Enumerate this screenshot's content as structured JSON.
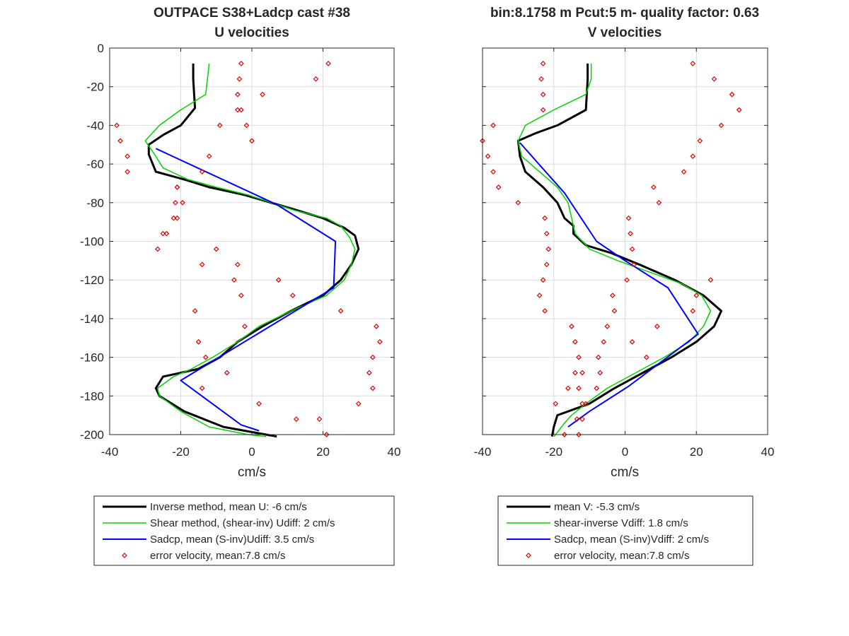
{
  "figure": {
    "left_title_line1": "OUTPACE S38+Ladcp cast #38",
    "right_title_line1": "bin:8.1758 m  Pcut:5 m- quality factor:  0.63"
  },
  "chart_data": [
    {
      "type": "line",
      "title": "U velocities",
      "xlabel": "cm/s",
      "ylabel": "",
      "xlim": [
        -40,
        40
      ],
      "ylim": [
        -200,
        0
      ],
      "xticks": [
        -40,
        -20,
        0,
        20,
        40
      ],
      "yticks": [
        0,
        -20,
        -40,
        -60,
        -80,
        -100,
        -120,
        -140,
        -160,
        -180,
        -200
      ],
      "grid": true,
      "legend_position": "below",
      "series": [
        {
          "name": "Inverse method, mean U:  -6 cm/s",
          "color": "#000000",
          "style": "line",
          "width": 3,
          "x": [
            -16.5,
            -16.5,
            -16,
            -20,
            -25,
            -29,
            -29,
            -27,
            -19,
            -12,
            -2,
            11,
            20,
            26,
            29,
            30,
            28,
            25,
            20,
            11,
            3,
            -4,
            -9,
            -15,
            -20,
            -25,
            -27,
            -26,
            -19,
            -8,
            7
          ],
          "y": [
            -8,
            -16,
            -31,
            -40,
            -45,
            -50,
            -55,
            -64,
            -68,
            -72,
            -76,
            -83,
            -88,
            -93,
            -97,
            -104,
            -112,
            -120,
            -128,
            -136,
            -144,
            -152,
            -160,
            -166,
            -168,
            -170,
            -176,
            -180,
            -188,
            -196,
            -201
          ]
        },
        {
          "name": "Shear method, (shear-inv)  Udiff:  2 cm/s",
          "color": "#00d400",
          "style": "line",
          "width": 1.5,
          "x": [
            -12,
            -12.5,
            -13,
            -20,
            -26,
            -30,
            -27,
            -25,
            -18,
            -10,
            -1,
            12,
            21,
            25,
            27.5,
            29,
            28,
            26,
            21,
            11,
            2,
            -4,
            -11,
            -17,
            -22,
            -26.5,
            -26,
            -20,
            -12,
            -1,
            4
          ],
          "y": [
            -8,
            -16,
            -24,
            -32,
            -40,
            -48,
            -56,
            -62,
            -68,
            -72,
            -76,
            -84,
            -88,
            -92,
            -98,
            -104,
            -112,
            -120,
            -128,
            -136,
            -144,
            -152,
            -160,
            -166,
            -170,
            -176,
            -180,
            -188,
            -196,
            -200,
            -201
          ]
        },
        {
          "name": "Sadcp, mean (S-inv)Udiff: 3.5 cm/s",
          "color": "#0000ff",
          "style": "line",
          "width": 2,
          "x": [
            -27,
            7,
            23.5,
            23,
            -20,
            -3,
            2
          ],
          "y": [
            -52,
            -81,
            -100,
            -124,
            -172,
            -195,
            -198
          ]
        },
        {
          "name": "error velocity, mean:7.8 cm/s",
          "color": "#e00000",
          "style": "markers",
          "x": [
            -3,
            -3.5,
            -4,
            -4,
            -9,
            -38,
            -37,
            -35,
            -35,
            -21,
            -21.5,
            -21,
            -24,
            -10,
            -4,
            7.5,
            11.5,
            25,
            35,
            36,
            34,
            33,
            34,
            30,
            19,
            21,
            21.5,
            18,
            3,
            -3,
            -1.5,
            0,
            -12,
            -14,
            -21,
            -19.5,
            -22,
            -25,
            -26.5,
            -14,
            -5,
            -3,
            -16,
            -2,
            -15,
            -13,
            -7,
            -14,
            2,
            12.5
          ],
          "y": [
            -8,
            -16,
            -24,
            -32,
            -40,
            -40,
            -48,
            -56,
            -64,
            -72,
            -80,
            -88,
            -96,
            -104,
            -112,
            -120,
            -128,
            -136,
            -144,
            -152,
            -160,
            -168,
            -176,
            -184,
            -192,
            -200,
            -8,
            -16,
            -24,
            -32,
            -40,
            -48,
            -56,
            -64,
            -72,
            -80,
            -88,
            -96,
            -104,
            -112,
            -120,
            -128,
            -136,
            -144,
            -152,
            -160,
            -168,
            -176,
            -184,
            -192
          ],
          "note": ""
        }
      ]
    },
    {
      "type": "line",
      "title": "V velocities",
      "xlabel": "cm/s",
      "ylabel": "",
      "xlim": [
        -40,
        40
      ],
      "ylim": [
        -200,
        0
      ],
      "xticks": [
        -40,
        -20,
        0,
        20,
        40
      ],
      "yticks": [
        0,
        -20,
        -40,
        -60,
        -80,
        -100,
        -120,
        -140,
        -160,
        -180,
        -200
      ],
      "grid": true,
      "legend_position": "below",
      "series": [
        {
          "name": "mean V:  -5.3 cm/s",
          "color": "#000000",
          "style": "line",
          "width": 3,
          "x": [
            -10.5,
            -10.5,
            -11,
            -19,
            -25,
            -30,
            -29.5,
            -28,
            -23,
            -19,
            -17,
            -14.5,
            -14.5,
            -11,
            -4,
            4,
            14,
            22,
            27,
            25,
            20,
            13,
            5,
            -3,
            -10,
            -16,
            -19,
            -20,
            -20.5
          ],
          "y": [
            -8,
            -16,
            -32,
            -40,
            -44,
            -48,
            -56,
            -64,
            -72,
            -80,
            -88,
            -92,
            -96,
            -102,
            -106,
            -112,
            -120,
            -128,
            -136,
            -144,
            -152,
            -160,
            -168,
            -176,
            -184,
            -188,
            -190,
            -196,
            -201
          ]
        },
        {
          "name": "shear-inverse Vdiff:  1.8 cm/s",
          "color": "#00d400",
          "style": "line",
          "width": 1.5,
          "x": [
            -9.5,
            -9.5,
            -11,
            -20,
            -28,
            -30,
            -29,
            -24,
            -19,
            -16,
            -14,
            -10,
            -2,
            7,
            16,
            21.5,
            24,
            22,
            18,
            11,
            3,
            -5,
            -11,
            -15,
            -17,
            -19.5,
            -20
          ],
          "y": [
            -8,
            -16,
            -24,
            -32,
            -40,
            -48,
            -56,
            -64,
            -72,
            -80,
            -96,
            -104,
            -110,
            -116,
            -122,
            -128,
            -136,
            -144,
            -152,
            -160,
            -168,
            -176,
            -184,
            -190,
            -194,
            -200,
            -201
          ]
        },
        {
          "name": "Sadcp, mean (S-inv)Vdiff: 2 cm/s",
          "color": "#0000ff",
          "style": "line",
          "width": 2,
          "x": [
            -29.5,
            -17,
            -8,
            0,
            12,
            20.5,
            1,
            -10,
            -16
          ],
          "y": [
            -49,
            -75,
            -100,
            -110,
            -124,
            -148,
            -175,
            -188,
            -196
          ]
        },
        {
          "name": "error velocity, mean:7.8 cm/s",
          "color": "#e00000",
          "style": "markers",
          "x": [
            -23,
            -23.5,
            -23,
            -23,
            -37,
            -40,
            -38.5,
            -37,
            -35.5,
            -30,
            -22.5,
            -22,
            -21.5,
            -22,
            -23,
            -24,
            -22.5,
            -15,
            -14,
            -13,
            -12,
            -13,
            -12,
            -13.5,
            -17,
            -13,
            -12,
            -11,
            -8,
            -7,
            -7.5,
            -6,
            -5,
            -3,
            -3.5,
            0.5,
            2.5,
            2,
            1.5,
            1,
            9.5,
            8,
            16.5,
            19,
            21,
            27,
            32,
            30,
            25,
            19,
            24,
            20,
            19,
            9,
            2,
            6,
            -14,
            -16,
            -19.5
          ],
          "y": [
            -8,
            -16,
            -24,
            -32,
            -40,
            -48,
            -56,
            -64,
            -72,
            -80,
            -88,
            -96,
            -104,
            -112,
            -120,
            -128,
            -136,
            -144,
            -152,
            -160,
            -168,
            -176,
            -184,
            -192,
            -200,
            -200,
            -192,
            -184,
            -176,
            -168,
            -160,
            -152,
            -144,
            -136,
            -128,
            -120,
            -112,
            -104,
            -96,
            -88,
            -80,
            -72,
            -64,
            -56,
            -48,
            -40,
            -32,
            -24,
            -16,
            -8,
            -120,
            -128,
            -136,
            -144,
            -152,
            -160,
            -168,
            -176,
            -184
          ]
        }
      ]
    }
  ]
}
